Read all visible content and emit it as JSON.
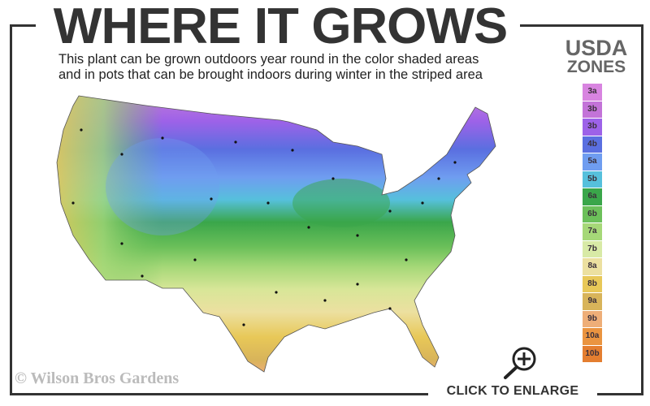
{
  "header": {
    "title": "WHERE IT GROWS",
    "subtitle_line1": "This plant can be grown outdoors year round in the color shaded areas",
    "subtitle_line2": "and in pots that can be brought indoors during winter in the striped area"
  },
  "legend": {
    "title_line1": "USDA",
    "title_line2": "ZONES",
    "zones": [
      {
        "label": "3a",
        "color": "#d884e0"
      },
      {
        "label": "3b",
        "color": "#c373d8"
      },
      {
        "label": "3b",
        "color": "#9d62e8"
      },
      {
        "label": "4b",
        "color": "#5a6fe0"
      },
      {
        "label": "5a",
        "color": "#6f9df0"
      },
      {
        "label": "5b",
        "color": "#56c0dc"
      },
      {
        "label": "6a",
        "color": "#3aa64a"
      },
      {
        "label": "6b",
        "color": "#6cc05a"
      },
      {
        "label": "7a",
        "color": "#a6d878"
      },
      {
        "label": "7b",
        "color": "#d8eaa6"
      },
      {
        "label": "8a",
        "color": "#ece0a0"
      },
      {
        "label": "8b",
        "color": "#e8c858"
      },
      {
        "label": "9a",
        "color": "#d8b45a"
      },
      {
        "label": "9b",
        "color": "#eeae78"
      },
      {
        "label": "10a",
        "color": "#ea9440"
      },
      {
        "label": "10b",
        "color": "#e47e30"
      }
    ]
  },
  "map": {
    "icon": "usda-hardiness-zone-map-usa"
  },
  "watermark": "© Wilson Bros Gardens",
  "enlarge": {
    "label": "CLICK TO ENLARGE",
    "icon": "magnifier-plus-icon"
  }
}
